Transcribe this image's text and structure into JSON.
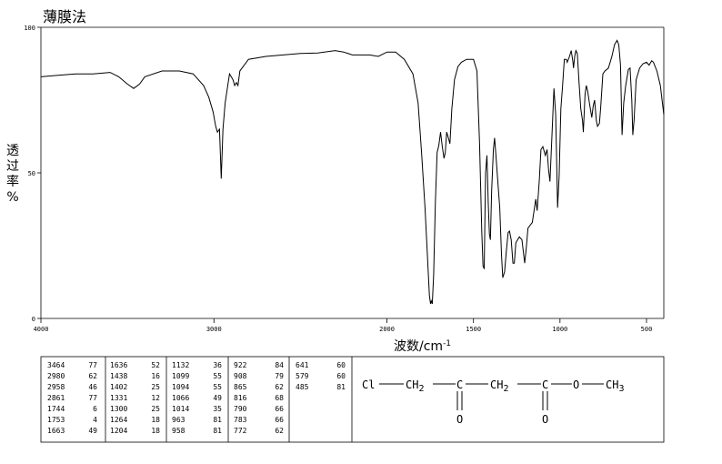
{
  "chart_data": {
    "type": "line",
    "title": "薄膜法",
    "xlabel": "波数/cm",
    "xlabel_sup": "-1",
    "ylabel": "透过率%",
    "xlim": [
      4000,
      400
    ],
    "ylim": [
      0,
      100
    ],
    "x_ticks": [
      {
        "value": 4000,
        "label": "4000"
      },
      {
        "value": 3000,
        "label": "3000"
      },
      {
        "value": 2000,
        "label": "2000"
      },
      {
        "value": 1500,
        "label": "1500"
      },
      {
        "value": 1000,
        "label": "1000"
      },
      {
        "value": 500,
        "label": "500"
      }
    ],
    "y_ticks": [
      {
        "value": 100,
        "label": "100"
      },
      {
        "value": 50,
        "label": "50"
      },
      {
        "value": 0,
        "label": "0"
      }
    ],
    "spectrum": [
      [
        4000,
        83
      ],
      [
        3900,
        83.5
      ],
      [
        3800,
        84
      ],
      [
        3700,
        84
      ],
      [
        3600,
        84.5
      ],
      [
        3550,
        83
      ],
      [
        3500,
        80.5
      ],
      [
        3464,
        79
      ],
      [
        3430,
        80.5
      ],
      [
        3400,
        83
      ],
      [
        3300,
        85
      ],
      [
        3200,
        85
      ],
      [
        3120,
        84
      ],
      [
        3060,
        80
      ],
      [
        3030,
        76
      ],
      [
        3005,
        71
      ],
      [
        2990,
        66
      ],
      [
        2980,
        64
      ],
      [
        2968,
        65
      ],
      [
        2958,
        48
      ],
      [
        2948,
        65
      ],
      [
        2935,
        74
      ],
      [
        2910,
        84
      ],
      [
        2890,
        82
      ],
      [
        2880,
        80
      ],
      [
        2870,
        81
      ],
      [
        2861,
        80
      ],
      [
        2850,
        85
      ],
      [
        2800,
        89
      ],
      [
        2700,
        90
      ],
      [
        2600,
        90.5
      ],
      [
        2500,
        91
      ],
      [
        2400,
        91.2
      ],
      [
        2300,
        92
      ],
      [
        2250,
        91.5
      ],
      [
        2200,
        90.5
      ],
      [
        2100,
        90.5
      ],
      [
        2050,
        90
      ],
      [
        2000,
        91.5
      ],
      [
        1950,
        91.5
      ],
      [
        1900,
        89
      ],
      [
        1850,
        84
      ],
      [
        1820,
        74
      ],
      [
        1800,
        57
      ],
      [
        1780,
        38
      ],
      [
        1765,
        20
      ],
      [
        1755,
        8
      ],
      [
        1748,
        5
      ],
      [
        1744,
        6
      ],
      [
        1738,
        5
      ],
      [
        1730,
        15
      ],
      [
        1720,
        40
      ],
      [
        1710,
        57
      ],
      [
        1700,
        59.5
      ],
      [
        1690,
        64
      ],
      [
        1680,
        59
      ],
      [
        1670,
        55
      ],
      [
        1663,
        57
      ],
      [
        1655,
        64
      ],
      [
        1645,
        62
      ],
      [
        1636,
        60
      ],
      [
        1625,
        72
      ],
      [
        1610,
        82
      ],
      [
        1590,
        86.5
      ],
      [
        1570,
        88
      ],
      [
        1540,
        89
      ],
      [
        1500,
        89
      ],
      [
        1480,
        85
      ],
      [
        1465,
        60
      ],
      [
        1452,
        30
      ],
      [
        1445,
        18
      ],
      [
        1438,
        17
      ],
      [
        1430,
        50
      ],
      [
        1422,
        56
      ],
      [
        1415,
        40
      ],
      [
        1408,
        29
      ],
      [
        1402,
        27
      ],
      [
        1395,
        44
      ],
      [
        1385,
        58
      ],
      [
        1378,
        62
      ],
      [
        1370,
        56
      ],
      [
        1358,
        46
      ],
      [
        1348,
        38
      ],
      [
        1338,
        22
      ],
      [
        1331,
        14
      ],
      [
        1320,
        16
      ],
      [
        1310,
        23
      ],
      [
        1300,
        29.5
      ],
      [
        1292,
        30
      ],
      [
        1282,
        27
      ],
      [
        1272,
        19
      ],
      [
        1264,
        19
      ],
      [
        1255,
        26
      ],
      [
        1245,
        27
      ],
      [
        1235,
        28
      ],
      [
        1220,
        27
      ],
      [
        1204,
        19
      ],
      [
        1195,
        24
      ],
      [
        1185,
        31
      ],
      [
        1160,
        33
      ],
      [
        1140,
        41
      ],
      [
        1132,
        37
      ],
      [
        1120,
        47
      ],
      [
        1110,
        58
      ],
      [
        1099,
        59
      ],
      [
        1094,
        58
      ],
      [
        1085,
        56
      ],
      [
        1075,
        58
      ],
      [
        1066,
        51
      ],
      [
        1058,
        47
      ],
      [
        1045,
        65
      ],
      [
        1035,
        79
      ],
      [
        1025,
        70
      ],
      [
        1014,
        38
      ],
      [
        1005,
        49
      ],
      [
        995,
        72
      ],
      [
        985,
        80
      ],
      [
        975,
        89
      ],
      [
        963,
        89
      ],
      [
        958,
        88
      ],
      [
        945,
        90
      ],
      [
        935,
        92
      ],
      [
        925,
        88
      ],
      [
        922,
        86
      ],
      [
        915,
        90
      ],
      [
        908,
        92
      ],
      [
        900,
        91
      ],
      [
        890,
        81
      ],
      [
        880,
        72
      ],
      [
        870,
        68
      ],
      [
        865,
        64
      ],
      [
        855,
        77
      ],
      [
        848,
        80
      ],
      [
        840,
        78
      ],
      [
        830,
        74
      ],
      [
        816,
        69
      ],
      [
        808,
        73
      ],
      [
        800,
        75
      ],
      [
        790,
        68
      ],
      [
        783,
        66
      ],
      [
        772,
        67
      ],
      [
        765,
        72
      ],
      [
        752,
        84
      ],
      [
        740,
        85
      ],
      [
        720,
        86
      ],
      [
        700,
        90
      ],
      [
        685,
        94
      ],
      [
        670,
        95.5
      ],
      [
        660,
        94
      ],
      [
        650,
        87
      ],
      [
        641,
        63
      ],
      [
        632,
        74
      ],
      [
        620,
        80
      ],
      [
        605,
        85.5
      ],
      [
        595,
        86
      ],
      [
        585,
        75
      ],
      [
        579,
        63
      ],
      [
        572,
        68
      ],
      [
        560,
        82
      ],
      [
        540,
        86
      ],
      [
        520,
        87.5
      ],
      [
        500,
        88
      ],
      [
        485,
        87
      ],
      [
        470,
        88.5
      ],
      [
        460,
        88
      ],
      [
        440,
        85
      ],
      [
        420,
        80
      ],
      [
        400,
        70
      ]
    ],
    "peak_table": [
      [
        [
          "3464",
          "77"
        ],
        [
          "2980",
          "62"
        ],
        [
          "2958",
          "46"
        ],
        [
          "2861",
          "77"
        ],
        [
          "1744",
          "6"
        ],
        [
          "1753",
          "4"
        ],
        [
          "1663",
          "49"
        ]
      ],
      [
        [
          "1636",
          "52"
        ],
        [
          "1438",
          "16"
        ],
        [
          "1402",
          "25"
        ],
        [
          "1331",
          "12"
        ],
        [
          "1300",
          "25"
        ],
        [
          "1264",
          "18"
        ],
        [
          "1204",
          "18"
        ]
      ],
      [
        [
          "1132",
          "36"
        ],
        [
          "1099",
          "55"
        ],
        [
          "1094",
          "55"
        ],
        [
          "1066",
          "49"
        ],
        [
          "1014",
          "35"
        ],
        [
          "963",
          "81"
        ],
        [
          "958",
          "81"
        ]
      ],
      [
        [
          "922",
          "84"
        ],
        [
          "908",
          "79"
        ],
        [
          "865",
          "62"
        ],
        [
          "816",
          "68"
        ],
        [
          "790",
          "66"
        ],
        [
          "783",
          "66"
        ],
        [
          "772",
          "62"
        ]
      ],
      [
        [
          "641",
          "60"
        ],
        [
          "579",
          "60"
        ],
        [
          "485",
          "81"
        ]
      ]
    ],
    "structure": {
      "atoms": [
        "Cl",
        "CH",
        "2",
        "C",
        "CH",
        "2",
        "C",
        "O",
        "CH",
        "3"
      ],
      "carbonyl_o": "O"
    }
  }
}
